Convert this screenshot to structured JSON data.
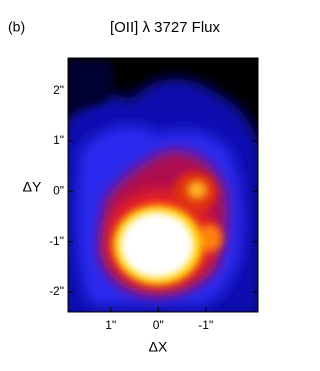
{
  "chart_data": {
    "type": "image",
    "panel": "(b)",
    "title": "[OII] λ 3727   Flux",
    "x_label": "ΔX",
    "y_label": "ΔY",
    "xlim": [
      1.9,
      -2.1
    ],
    "ylim": [
      -2.4,
      2.65
    ],
    "xticks": [
      {
        "value": 1,
        "label": "1\""
      },
      {
        "value": 0,
        "label": "0\""
      },
      {
        "value": -1,
        "label": "-1\""
      }
    ],
    "yticks": [
      {
        "value": 2,
        "label": "2\""
      },
      {
        "value": 1,
        "label": "1\""
      },
      {
        "value": 0,
        "label": "0\""
      },
      {
        "value": -1,
        "label": "-1\""
      },
      {
        "value": -2,
        "label": "-2\""
      }
    ]
  }
}
